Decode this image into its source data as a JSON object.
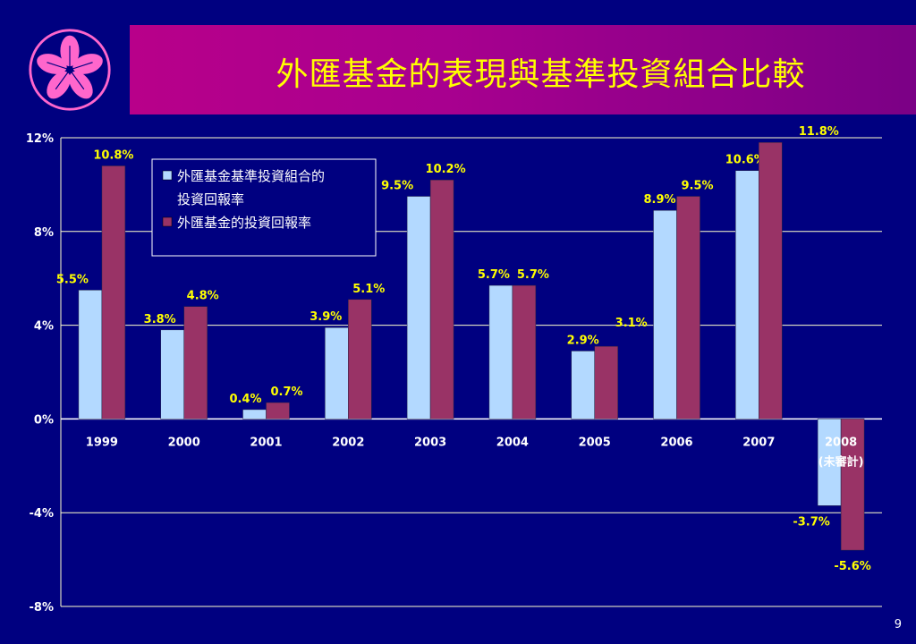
{
  "header": {
    "title": "外匯基金的表現與基準投資組合比較"
  },
  "logo": {
    "icon": "bauhinia-flower-icon",
    "color": "#ff66cc"
  },
  "page": {
    "number": "9"
  },
  "colors": {
    "background": "#000080",
    "title_text": "#ffff00",
    "benchmark_bar": "#b3d9ff",
    "fund_bar": "#993366",
    "grid": "#ffffcc",
    "label_text": "#ffff00"
  },
  "chart_data": {
    "type": "bar",
    "categories": [
      "1999",
      "2000",
      "2001",
      "2002",
      "2003",
      "2004",
      "2005",
      "2006",
      "2007",
      "2008"
    ],
    "category_notes": [
      "",
      "",
      "",
      "",
      "",
      "",
      "",
      "",
      "",
      "(未審計)"
    ],
    "series": [
      {
        "name": "外匯基金基準投資組合的投資回報率",
        "values": [
          5.5,
          3.8,
          0.4,
          3.9,
          9.5,
          5.7,
          2.9,
          8.9,
          10.6,
          -3.7
        ],
        "labels": [
          "5.5%",
          "3.8%",
          "0.4%",
          "3.9%",
          "9.5%",
          "5.7%",
          "2.9%",
          "8.9%",
          "10.6%",
          "-3.7%"
        ]
      },
      {
        "name": "外匯基金的投資回報率",
        "values": [
          10.8,
          4.8,
          0.7,
          5.1,
          10.2,
          5.7,
          3.1,
          9.5,
          11.8,
          -5.6
        ],
        "labels": [
          "10.8%",
          "4.8%",
          "0.7%",
          "5.1%",
          "10.2%",
          "5.7%",
          "3.1%",
          "9.5%",
          "11.8%",
          "-5.6%"
        ]
      }
    ],
    "legend": [
      "外匯基金基準投資組合的",
      "投資回報率",
      "外匯基金的投資回報率"
    ],
    "ylim": [
      -8,
      12
    ],
    "yticks": [
      12,
      8,
      4,
      0,
      -4,
      -8
    ],
    "ytick_labels": [
      "12%",
      "8%",
      "4%",
      "0%",
      "-4%",
      "-8%"
    ],
    "grid": true,
    "legend_position": "top-left"
  }
}
